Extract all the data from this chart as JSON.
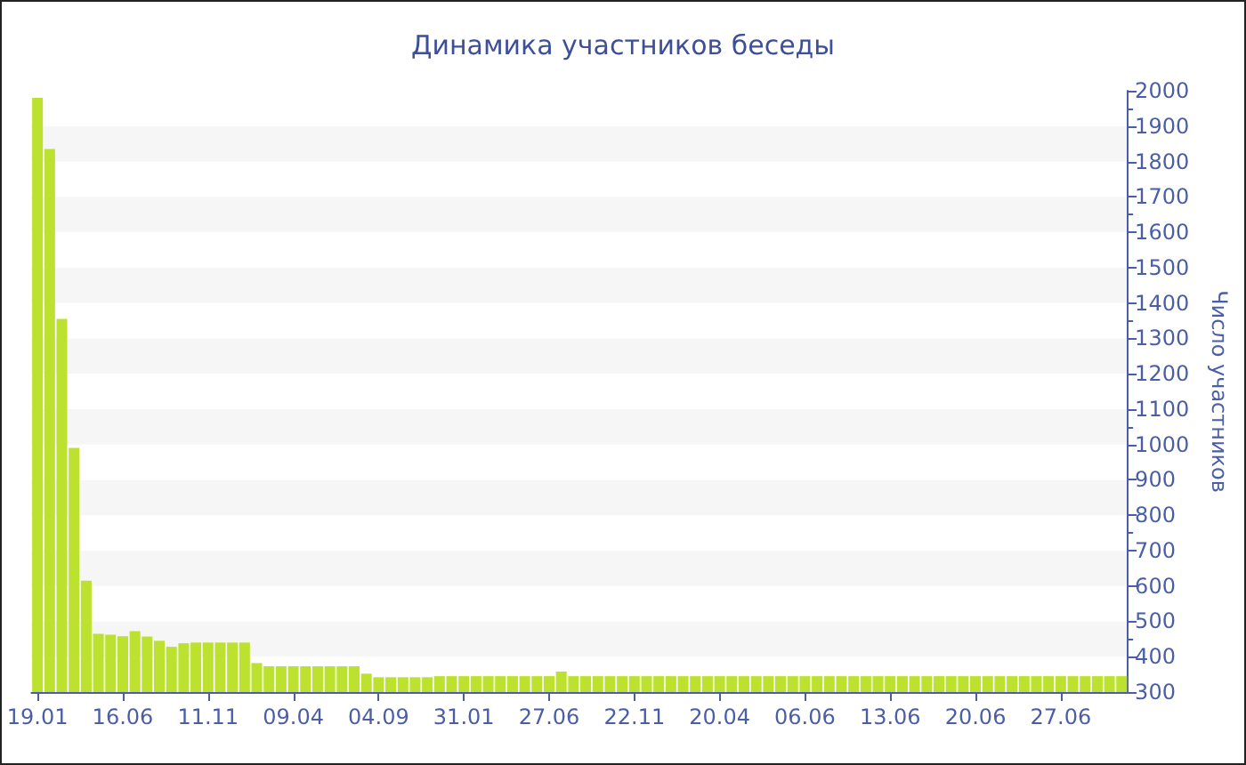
{
  "chart_data": {
    "type": "bar",
    "title": "Динамика участников беседы",
    "ylabel": "Число участников",
    "categories": [
      "19.01",
      null,
      null,
      null,
      null,
      null,
      null,
      "16.06",
      null,
      null,
      null,
      null,
      null,
      null,
      "11.11",
      null,
      null,
      null,
      null,
      null,
      null,
      "09.04",
      null,
      null,
      null,
      null,
      null,
      null,
      "04.09",
      null,
      null,
      null,
      null,
      null,
      null,
      "31.01",
      null,
      null,
      null,
      null,
      null,
      null,
      "27.06",
      null,
      null,
      null,
      null,
      null,
      null,
      "22.11",
      null,
      null,
      null,
      null,
      null,
      null,
      "20.04",
      null,
      null,
      null,
      null,
      null,
      null,
      "06.06",
      null,
      null,
      null,
      null,
      null,
      null,
      "13.06",
      null,
      null,
      null,
      null,
      null,
      null,
      "20.06",
      null,
      null,
      null,
      null,
      null,
      null,
      "27.06",
      null,
      null,
      null,
      null,
      null
    ],
    "values": [
      1980,
      1835,
      1355,
      990,
      615,
      465,
      462,
      458,
      472,
      457,
      445,
      428,
      438,
      440,
      440,
      440,
      440,
      440,
      382,
      373,
      373,
      373,
      373,
      373,
      373,
      373,
      373,
      352,
      342,
      342,
      342,
      342,
      342,
      345,
      345,
      345,
      345,
      345,
      345,
      345,
      345,
      345,
      345,
      358,
      345,
      345,
      345,
      345,
      345,
      345,
      345,
      345,
      345,
      345,
      345,
      345,
      345,
      345,
      345,
      345,
      345,
      345,
      345,
      345,
      345,
      345,
      345,
      345,
      345,
      345,
      345,
      345,
      345,
      345,
      345,
      345,
      345,
      345,
      345,
      345,
      345,
      345,
      345,
      345,
      345,
      345,
      345,
      345,
      345,
      345
    ],
    "color": "#bce22f",
    "ylim": [
      300,
      2000
    ],
    "yticks": [
      300,
      400,
      500,
      600,
      700,
      800,
      900,
      1000,
      1100,
      1200,
      1300,
      1400,
      1500,
      1600,
      1700,
      1800,
      1900,
      2000
    ],
    "grid": false
  }
}
